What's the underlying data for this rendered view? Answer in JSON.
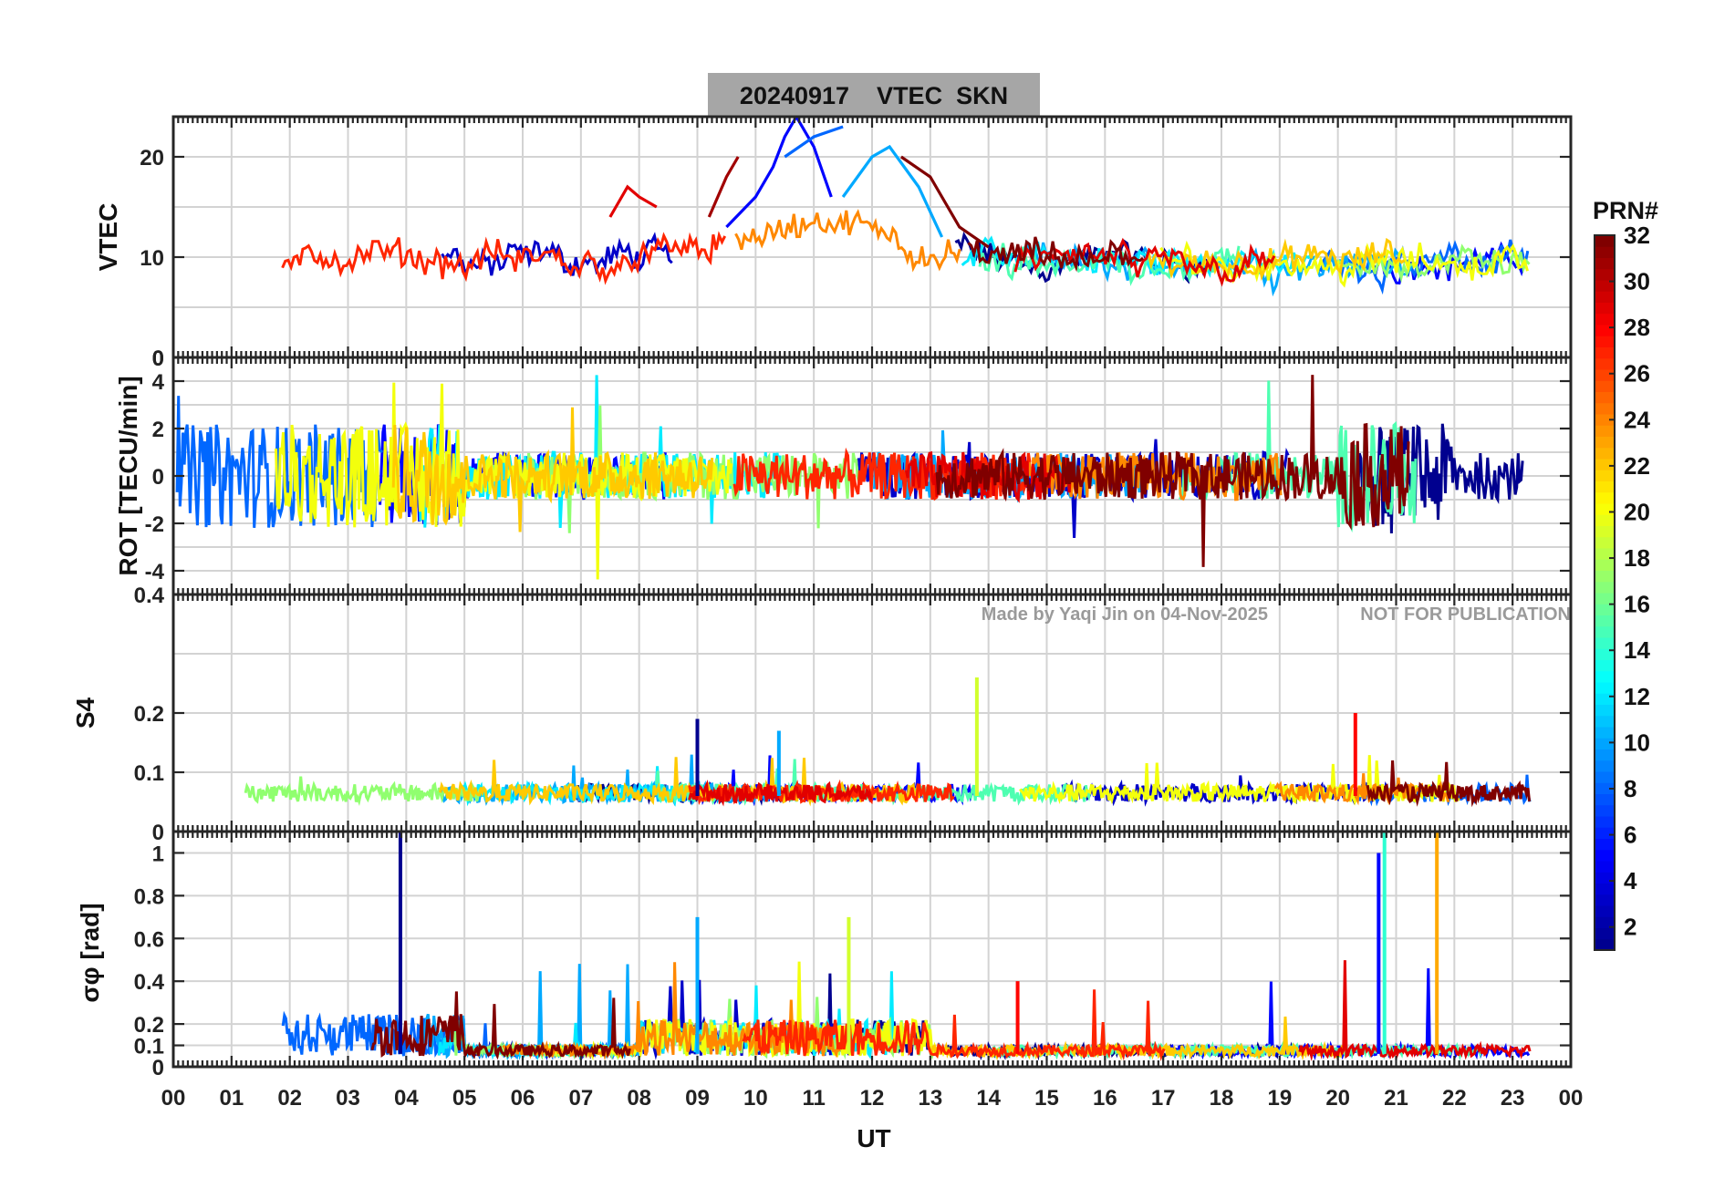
{
  "figure": {
    "title": "20240917    VTEC  SKN",
    "watermark_left": "Made by Yaqi Jin on 04-Nov-2025",
    "watermark_right": "NOT FOR PUBLICATION",
    "xlabel": "UT",
    "colorbar_label": "PRN#"
  },
  "colors": {
    "background": "#ffffff",
    "title_box": "#a6a6a6",
    "grid": "#d3d3d3",
    "axis": "#262626",
    "watermark": "#9a9a9a",
    "jet_scale": [
      "#00008f",
      "#0000ff",
      "#0080ff",
      "#00ffff",
      "#80ff80",
      "#ffff00",
      "#ff8000",
      "#ff0000",
      "#800000"
    ]
  },
  "chart_data": [
    {
      "type": "line",
      "panel": "VTEC",
      "ylabel": "VTEC",
      "xlim": [
        0,
        24
      ],
      "ylim": [
        0,
        24
      ],
      "yticks": [
        0,
        10,
        20
      ],
      "grid": true,
      "series_description": "one colored line per GPS PRN (1-32); values approx 6-24 TECU, peak near 10-12 UT",
      "series": [
        {
          "name": "PRN 5",
          "x": [
            9.5,
            10.0,
            10.3,
            10.5,
            10.7,
            11.0,
            11.3
          ],
          "values": [
            13,
            16,
            19,
            22,
            24,
            21,
            16
          ]
        },
        {
          "name": "PRN 8",
          "x": [
            10.5,
            11.0,
            11.5
          ],
          "values": [
            20,
            22,
            23
          ]
        },
        {
          "name": "PRN 10",
          "x": [
            11.5,
            12.0,
            12.3,
            12.8,
            13.2
          ],
          "values": [
            16,
            20,
            21,
            17,
            12
          ]
        },
        {
          "name": "PRN 29",
          "x": [
            7.5,
            7.8,
            8.0,
            8.3
          ],
          "values": [
            14,
            17,
            16,
            15
          ]
        },
        {
          "name": "PRN 31",
          "x": [
            9.2,
            9.5,
            9.7
          ],
          "values": [
            14,
            18,
            20
          ]
        },
        {
          "name": "PRN 32",
          "x": [
            12.5,
            13.0,
            13.5,
            14.0
          ],
          "values": [
            20,
            18,
            13,
            11
          ]
        }
      ]
    },
    {
      "type": "line",
      "panel": "ROT",
      "ylabel": "ROT [TECU/min]",
      "xlim": [
        0,
        24
      ],
      "ylim": [
        -5,
        5
      ],
      "yticks": [
        -4,
        -2,
        0,
        2,
        4
      ],
      "grid": true,
      "series_description": "rate of TEC per PRN, fluctuating around 0 with spikes to about ±5 TECU/min"
    },
    {
      "type": "line",
      "panel": "S4",
      "ylabel": "S4",
      "xlim": [
        0,
        24
      ],
      "ylim": [
        0,
        0.4
      ],
      "yticks": [
        0,
        0.1,
        0.2
      ],
      "grid": true,
      "series_description": "amplitude scintillation index per PRN, mostly 0.03-0.1",
      "spikes": [
        {
          "x": 9.0,
          "value": 0.19
        },
        {
          "x": 10.4,
          "value": 0.17
        },
        {
          "x": 13.8,
          "value": 0.26
        },
        {
          "x": 20.3,
          "value": 0.2
        }
      ]
    },
    {
      "type": "line",
      "panel": "sigma_phi",
      "ylabel": "σφ [rad]",
      "xlim": [
        0,
        24
      ],
      "ylim": [
        0,
        1.1
      ],
      "yticks": [
        0,
        0.1,
        0.2,
        0.4,
        0.6,
        0.8,
        1
      ],
      "grid": true,
      "series_description": "phase scintillation index per PRN, baseline 0.05-0.3 with spikes",
      "spikes": [
        {
          "x": 3.9,
          "value": 1.1
        },
        {
          "x": 9.0,
          "value": 0.7
        },
        {
          "x": 11.6,
          "value": 0.7
        },
        {
          "x": 14.5,
          "value": 0.4
        },
        {
          "x": 20.7,
          "value": 1.0
        },
        {
          "x": 20.8,
          "value": 1.1
        },
        {
          "x": 21.7,
          "value": 1.1
        }
      ]
    }
  ],
  "x_axis": {
    "label": "UT",
    "tick_labels": [
      "00",
      "01",
      "02",
      "03",
      "04",
      "05",
      "06",
      "07",
      "08",
      "09",
      "10",
      "11",
      "12",
      "13",
      "14",
      "15",
      "16",
      "17",
      "18",
      "19",
      "20",
      "21",
      "22",
      "23",
      "00"
    ]
  },
  "colorbar": {
    "label": "PRN#",
    "range": [
      1,
      32
    ],
    "tick_labels": [
      "2",
      "4",
      "6",
      "8",
      "10",
      "12",
      "14",
      "16",
      "18",
      "20",
      "22",
      "24",
      "26",
      "28",
      "30",
      "32"
    ]
  }
}
